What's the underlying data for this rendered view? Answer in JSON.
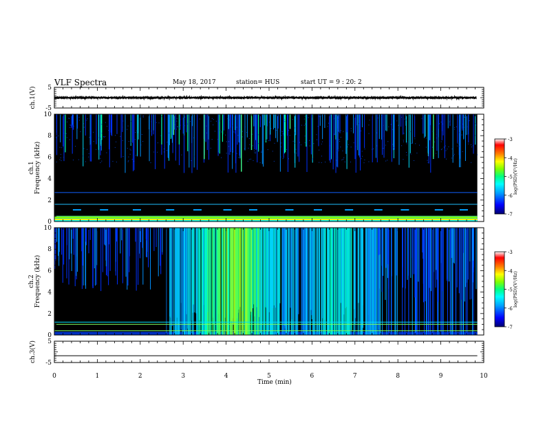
{
  "header": {
    "title": "VLF Spectra",
    "date": "May 18, 2017",
    "station": "station= HUS",
    "start": "start  UT =   9 : 20: 2"
  },
  "chart_data": [
    {
      "type": "line",
      "panel": "ch1-waveform",
      "ylabel": "ch.1(V)",
      "ylim": [
        -5,
        5
      ],
      "yticks": [
        "5",
        "-5"
      ],
      "note": "dense noisy waveform around 0 V across 0-9.8 min"
    },
    {
      "type": "heatmap",
      "panel": "ch1-spectrogram",
      "ylabel": "ch.1\nFrequency (kHz)",
      "ylim": [
        0,
        10
      ],
      "yticks": [
        "0",
        "2",
        "4",
        "6",
        "8",
        "10"
      ],
      "x_range_min": [
        0,
        9.85
      ],
      "colorbar": {
        "label": "log(PSD)(V²/Hz)",
        "range": [
          -7,
          -3
        ],
        "ticks": [
          "-3",
          "-4",
          "-5",
          "-6",
          "-7"
        ]
      },
      "horizontal_lines_khz": [
        0.3,
        0.5,
        1.6,
        2.7
      ],
      "activity": "sparse vertical spherics, mostly above 6 kHz"
    },
    {
      "type": "heatmap",
      "panel": "ch2-spectrogram",
      "ylabel": "ch.2\nFrequency (kHz)",
      "ylim": [
        0,
        10
      ],
      "yticks": [
        "0",
        "2",
        "4",
        "6",
        "8",
        "10"
      ],
      "x_range_min": [
        0,
        9.85
      ],
      "colorbar": {
        "label": "log(PSD)(V²/Hz)",
        "range": [
          -7,
          -3
        ],
        "ticks": [
          "-3",
          "-4",
          "-5",
          "-6",
          "-7"
        ]
      },
      "horizontal_lines_khz": [
        0.4,
        1.0,
        1.2
      ],
      "activity": "intense broadband bursts between 2.6 and 7.5 min, peaking near 4-4.5 min"
    },
    {
      "type": "line",
      "panel": "ch3-waveform",
      "ylabel": "ch.3(V)",
      "ylim": [
        -5,
        5
      ],
      "yticks": [
        "5",
        "-5"
      ],
      "x": [
        0,
        9.85
      ],
      "y": [
        -1.8,
        -1.8
      ]
    }
  ],
  "xaxis": {
    "label": "Time (min)",
    "ticks": [
      "0",
      "1",
      "2",
      "3",
      "4",
      "5",
      "6",
      "7",
      "8",
      "9",
      "10"
    ],
    "range": [
      0,
      10
    ]
  },
  "colors": {
    "background": "#000000",
    "colormap": [
      "#000070",
      "#0000ff",
      "#00a0ff",
      "#00ffff",
      "#00ff80",
      "#80ff00",
      "#ffff00",
      "#ff8000",
      "#ff0000",
      "#ffffff"
    ]
  }
}
